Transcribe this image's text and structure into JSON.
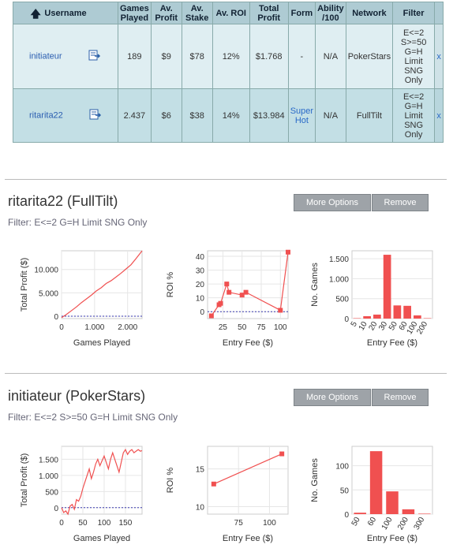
{
  "table": {
    "headers": [
      "Username",
      "Games Played",
      "Av. Profit",
      "Av. Stake",
      "Av. ROI",
      "Total Profit",
      "Form",
      "Ability /100",
      "Network",
      "Filter"
    ],
    "rows": [
      {
        "username": "initiateur",
        "games": "189",
        "avprofit": "$9",
        "avstake": "$78",
        "avroi": "12%",
        "total": "$1.768",
        "form": "-",
        "ability": "N/A",
        "network": "PokerStars",
        "filter": [
          "E<=2",
          "S>=50",
          "G=H",
          "Limit",
          "SNG",
          "Only"
        ],
        "remove": "x"
      },
      {
        "username": "ritarita22",
        "games": "2.437",
        "avprofit": "$6",
        "avstake": "$38",
        "avroi": "14%",
        "total": "$13.984",
        "form": "Super Hot",
        "ability": "N/A",
        "network": "FullTilt",
        "filter": [
          "E<=2",
          "G=H",
          "Limit",
          "SNG",
          "Only"
        ],
        "remove": "x"
      }
    ]
  },
  "section1": {
    "title": "ritarita22 (FullTilt)",
    "filter": "Filter: E<=2 G=H Limit SNG Only",
    "more_options": "More Options",
    "remove": "Remove"
  },
  "section2": {
    "title": "initiateur (PokerStars)",
    "filter": "Filter: E<=2 S>=50 G=H Limit SNG Only",
    "more_options": "More Options",
    "remove": "Remove"
  },
  "chart_data": [
    {
      "type": "line",
      "id": "s1-profit",
      "xlabel": "Games Played",
      "ylabel": "Total Profit ($)",
      "xlim": [
        0,
        2437
      ],
      "ylim": [
        -500,
        14000
      ],
      "xticks": [
        {
          "v": 0,
          "l": "0"
        },
        {
          "v": 1000,
          "l": "1.000"
        },
        {
          "v": 2000,
          "l": "2.000"
        }
      ],
      "yticks": [
        {
          "v": 0,
          "l": "0"
        },
        {
          "v": 5000,
          "l": "5.000"
        },
        {
          "v": 10000,
          "l": "10.000"
        }
      ],
      "x": [
        0,
        150,
        300,
        450,
        600,
        750,
        900,
        1050,
        1200,
        1350,
        1500,
        1650,
        1800,
        1950,
        2100,
        2250,
        2437
      ],
      "y": [
        -300,
        400,
        1200,
        2000,
        2900,
        3700,
        4500,
        5400,
        6100,
        7000,
        7600,
        8400,
        9200,
        10100,
        11000,
        12300,
        13984
      ]
    },
    {
      "type": "line",
      "id": "s1-roi",
      "xlabel": "Entry Fee ($)",
      "ylabel": "ROI %",
      "xlim": [
        5,
        110
      ],
      "ylim": [
        -5,
        44
      ],
      "xticks": [
        {
          "v": 25,
          "l": "25"
        },
        {
          "v": 50,
          "l": "50"
        },
        {
          "v": 75,
          "l": "75"
        },
        {
          "v": 100,
          "l": "100"
        }
      ],
      "yticks": [
        {
          "v": 0,
          "l": "0"
        },
        {
          "v": 10,
          "l": "10"
        },
        {
          "v": 20,
          "l": "20"
        },
        {
          "v": 30,
          "l": "30"
        },
        {
          "v": 40,
          "l": "40"
        }
      ],
      "x": [
        10,
        20,
        22,
        30,
        33,
        50,
        55,
        100,
        110
      ],
      "y": [
        -3,
        5,
        6,
        20,
        14,
        12,
        14,
        1,
        43
      ]
    },
    {
      "type": "bar",
      "id": "s1-games",
      "xlabel": "Entry Fee ($)",
      "ylabel": "No. Games",
      "ylim": [
        0,
        1700
      ],
      "categories": [
        "5",
        "10",
        "20",
        "30",
        "50",
        "60",
        "100",
        "200"
      ],
      "values": [
        10,
        60,
        100,
        1600,
        330,
        320,
        80,
        10
      ],
      "yticks": [
        {
          "v": 0,
          "l": "0"
        },
        {
          "v": 500,
          "l": "500"
        },
        {
          "v": 1000,
          "l": "1.000"
        },
        {
          "v": 1500,
          "l": "1.500"
        }
      ]
    },
    {
      "type": "line",
      "id": "s2-profit",
      "xlabel": "Games Played",
      "ylabel": "Total Profit ($)",
      "xlim": [
        0,
        189
      ],
      "ylim": [
        -200,
        1900
      ],
      "xticks": [
        {
          "v": 0,
          "l": "0"
        },
        {
          "v": 50,
          "l": "50"
        },
        {
          "v": 100,
          "l": "100"
        },
        {
          "v": 150,
          "l": "150"
        }
      ],
      "yticks": [
        {
          "v": 0,
          "l": "0"
        },
        {
          "v": 500,
          "l": "500"
        },
        {
          "v": 1000,
          "l": "1.000"
        },
        {
          "v": 1500,
          "l": "1.500"
        }
      ],
      "x": [
        0,
        5,
        10,
        15,
        20,
        25,
        30,
        35,
        40,
        45,
        50,
        55,
        60,
        65,
        70,
        75,
        80,
        85,
        90,
        95,
        100,
        105,
        110,
        115,
        120,
        125,
        130,
        135,
        140,
        145,
        150,
        155,
        160,
        165,
        170,
        175,
        180,
        185,
        189
      ],
      "y": [
        0,
        -150,
        -100,
        -200,
        50,
        100,
        -50,
        250,
        200,
        350,
        600,
        800,
        1000,
        1200,
        900,
        1100,
        1350,
        1500,
        1300,
        1450,
        1600,
        1400,
        1200,
        1500,
        1700,
        1500,
        1300,
        1100,
        1400,
        1700,
        1800,
        1650,
        1750,
        1800,
        1700,
        1750,
        1800,
        1750,
        1768
      ]
    },
    {
      "type": "line",
      "id": "s2-roi",
      "xlabel": "Entry Fee ($)",
      "ylabel": "ROI %",
      "xlim": [
        50,
        115
      ],
      "ylim": [
        9,
        18
      ],
      "xticks": [
        {
          "v": 75,
          "l": "75"
        },
        {
          "v": 100,
          "l": "100"
        }
      ],
      "yticks": [
        {
          "v": 10,
          "l": "10"
        },
        {
          "v": 15,
          "l": "15"
        }
      ],
      "x": [
        55,
        110
      ],
      "y": [
        13,
        17
      ]
    },
    {
      "type": "bar",
      "id": "s2-games",
      "xlabel": "Entry Fee ($)",
      "ylabel": "No. Games",
      "ylim": [
        0,
        140
      ],
      "categories": [
        "50",
        "60",
        "100",
        "200",
        "300"
      ],
      "values": [
        3,
        130,
        47,
        10,
        1
      ],
      "yticks": [
        {
          "v": 0,
          "l": "0"
        },
        {
          "v": 50,
          "l": "50"
        },
        {
          "v": 100,
          "l": "100"
        }
      ]
    }
  ]
}
